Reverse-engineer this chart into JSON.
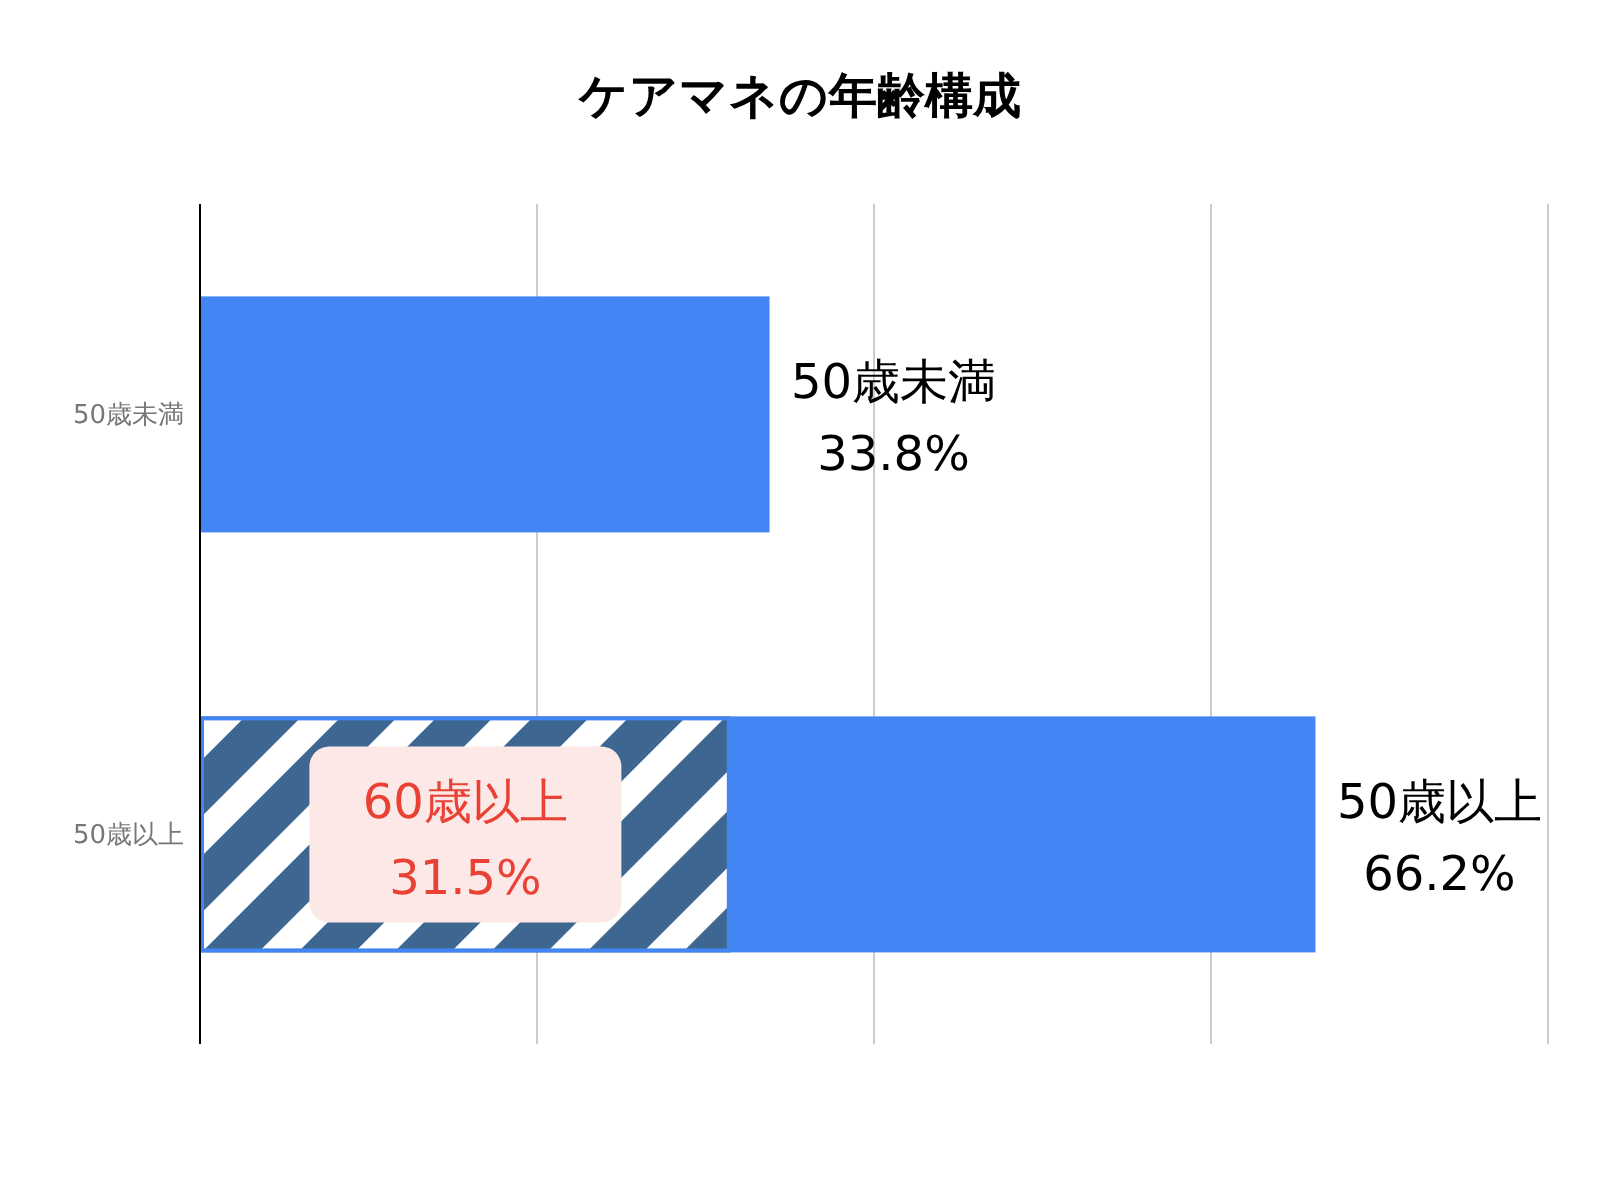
{
  "chart_data": {
    "type": "bar",
    "orientation": "horizontal",
    "stacked": true,
    "title": "ケアマネの年齢構成",
    "categories": [
      "50歳未満",
      "50歳以上"
    ],
    "series": [
      {
        "name": "60歳以上",
        "color": "#3d6690",
        "values": [
          null,
          31.5
        ],
        "value_labels": [
          null,
          "31.5%"
        ]
      },
      {
        "color": "#4285f4",
        "values": [
          33.8,
          34.7
        ]
      }
    ],
    "totals": [
      "33.8%",
      "66.2%"
    ],
    "xticks": [
      {
        "value": 0,
        "label": null
      },
      {
        "value": 20,
        "label": null
      },
      {
        "value": 40,
        "label": null
      },
      {
        "value": 60,
        "label": null
      }
    ],
    "tick_labels": "y",
    "grid": "x",
    "legend": false
  }
}
